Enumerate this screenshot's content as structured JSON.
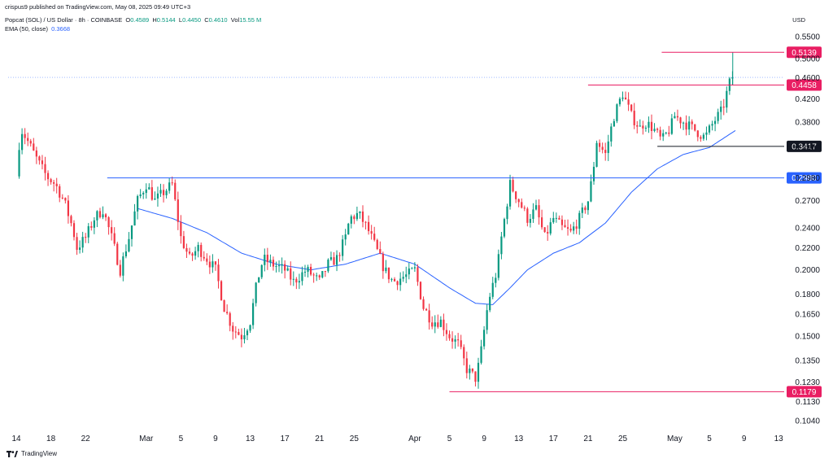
{
  "header": {
    "published": "crispus9 published on TradingView.com, May 08, 2025 09:49 UTC+3",
    "symbol": "Popcat (SOL) / US Dollar · 8h · COINBASE",
    "ohlc": {
      "O": "0.4589",
      "H": "0.5144",
      "L": "0.4450",
      "C": "0.4610",
      "Vol": "15.55 M"
    },
    "ema_label": "EMA (50, close)",
    "ema_value": "0.3668",
    "currency": "USD"
  },
  "brand": {
    "name": "TradingView"
  },
  "colors": {
    "up": "#089981",
    "down": "#f23645",
    "ema": "#2962ff",
    "level_red": "#e91e63",
    "level_blue": "#2962ff",
    "level_black": "#131722"
  },
  "chart_data": {
    "type": "candlestick",
    "y_scale": "log",
    "ylim": [
      0.1,
      0.58
    ],
    "y_ticks": [
      "0.5500",
      "0.5000",
      "0.4600",
      "0.4200",
      "0.3800",
      "0.3400",
      "0.2980",
      "0.2700",
      "0.2400",
      "0.2200",
      "0.2000",
      "0.1800",
      "0.1650",
      "0.1500",
      "0.1350",
      "0.1230",
      "0.1130",
      "0.1040"
    ],
    "x_ticks": [
      {
        "label": "14",
        "day": 0
      },
      {
        "label": "18",
        "day": 4
      },
      {
        "label": "22",
        "day": 8
      },
      {
        "label": "Mar",
        "day": 15
      },
      {
        "label": "5",
        "day": 19
      },
      {
        "label": "9",
        "day": 23
      },
      {
        "label": "13",
        "day": 27
      },
      {
        "label": "17",
        "day": 31
      },
      {
        "label": "21",
        "day": 35
      },
      {
        "label": "25",
        "day": 39
      },
      {
        "label": "Apr",
        "day": 46
      },
      {
        "label": "5",
        "day": 50
      },
      {
        "label": "9",
        "day": 54
      },
      {
        "label": "13",
        "day": 58
      },
      {
        "label": "17",
        "day": 62
      },
      {
        "label": "21",
        "day": 66
      },
      {
        "label": "25",
        "day": 70
      },
      {
        "label": "May",
        "day": 76
      },
      {
        "label": "5",
        "day": 80
      },
      {
        "label": "9",
        "day": 84
      },
      {
        "label": "13",
        "day": 88
      }
    ],
    "levels": [
      {
        "label": "0.5139",
        "value": 0.5139,
        "color": "#e91e63",
        "from_day": 74.5,
        "style": "tag"
      },
      {
        "label": "0.4458",
        "value": 0.4458,
        "color": "#e91e63",
        "from_day": 66,
        "style": "tag"
      },
      {
        "label": "0.3417",
        "value": 0.3417,
        "color": "#131722",
        "from_day": 74,
        "style": "tag-dark"
      },
      {
        "label": "0.2980",
        "value": 0.298,
        "color": "#2962ff",
        "from_day": 10.5,
        "style": "tag"
      },
      {
        "label": "0.1179",
        "value": 0.1179,
        "color": "#e91e63",
        "from_day": 50,
        "style": "tag"
      }
    ],
    "last_price": {
      "label": "0.4610",
      "value": 0.461
    },
    "anchors": [
      [
        0,
        0.3
      ],
      [
        0.5,
        0.37
      ],
      [
        1.3,
        0.35
      ],
      [
        2.5,
        0.32
      ],
      [
        3.5,
        0.3
      ],
      [
        4.5,
        0.29
      ],
      [
        5.5,
        0.27
      ],
      [
        6.5,
        0.24
      ],
      [
        7,
        0.22
      ],
      [
        8,
        0.23
      ],
      [
        9,
        0.25
      ],
      [
        10,
        0.26
      ],
      [
        11,
        0.23
      ],
      [
        12,
        0.2
      ],
      [
        13,
        0.23
      ],
      [
        14,
        0.27
      ],
      [
        15,
        0.29
      ],
      [
        16,
        0.27
      ],
      [
        17,
        0.28
      ],
      [
        18,
        0.29
      ],
      [
        19,
        0.23
      ],
      [
        20,
        0.21
      ],
      [
        21,
        0.22
      ],
      [
        22,
        0.21
      ],
      [
        23,
        0.2
      ],
      [
        24,
        0.17
      ],
      [
        25,
        0.155
      ],
      [
        26,
        0.15
      ],
      [
        27,
        0.16
      ],
      [
        27.8,
        0.19
      ],
      [
        28.5,
        0.21
      ],
      [
        29.5,
        0.205
      ],
      [
        31,
        0.2
      ],
      [
        32,
        0.19
      ],
      [
        33.5,
        0.2
      ],
      [
        35,
        0.19
      ],
      [
        36,
        0.205
      ],
      [
        37,
        0.21
      ],
      [
        38,
        0.23
      ],
      [
        38.5,
        0.25
      ],
      [
        39.5,
        0.255
      ],
      [
        40.5,
        0.24
      ],
      [
        41.5,
        0.22
      ],
      [
        42.5,
        0.2
      ],
      [
        43.5,
        0.19
      ],
      [
        45,
        0.195
      ],
      [
        46,
        0.2
      ],
      [
        47,
        0.17
      ],
      [
        48,
        0.16
      ],
      [
        49,
        0.16
      ],
      [
        50,
        0.15
      ],
      [
        51,
        0.145
      ],
      [
        52,
        0.13
      ],
      [
        53,
        0.125
      ],
      [
        53.5,
        0.135
      ],
      [
        54.5,
        0.175
      ],
      [
        55.5,
        0.2
      ],
      [
        56,
        0.23
      ],
      [
        57,
        0.29
      ],
      [
        58,
        0.27
      ],
      [
        59,
        0.25
      ],
      [
        60,
        0.26
      ],
      [
        61,
        0.23
      ],
      [
        62,
        0.25
      ],
      [
        63,
        0.24
      ],
      [
        64,
        0.235
      ],
      [
        65,
        0.25
      ],
      [
        66,
        0.27
      ],
      [
        66.5,
        0.3
      ],
      [
        67,
        0.35
      ],
      [
        68,
        0.33
      ],
      [
        68.5,
        0.36
      ],
      [
        69,
        0.39
      ],
      [
        69.5,
        0.41
      ],
      [
        70,
        0.43
      ],
      [
        71,
        0.39
      ],
      [
        72,
        0.37
      ],
      [
        72.5,
        0.38
      ],
      [
        73.5,
        0.37
      ],
      [
        74.5,
        0.35
      ],
      [
        75.5,
        0.37
      ],
      [
        76,
        0.39
      ],
      [
        77,
        0.38
      ],
      [
        78,
        0.37
      ],
      [
        79,
        0.36
      ],
      [
        79.5,
        0.355
      ],
      [
        80.5,
        0.38
      ],
      [
        81.5,
        0.4
      ],
      [
        82,
        0.43
      ],
      [
        82.5,
        0.46
      ],
      [
        82.7,
        0.461
      ]
    ],
    "ema_start_day": 14,
    "ema_anchors": [
      [
        14,
        0.261
      ],
      [
        18,
        0.25
      ],
      [
        22,
        0.235
      ],
      [
        26,
        0.215
      ],
      [
        30,
        0.205
      ],
      [
        34,
        0.2
      ],
      [
        38,
        0.205
      ],
      [
        42,
        0.215
      ],
      [
        46,
        0.205
      ],
      [
        50,
        0.185
      ],
      [
        53,
        0.173
      ],
      [
        55,
        0.172
      ],
      [
        57,
        0.185
      ],
      [
        59,
        0.2
      ],
      [
        62,
        0.215
      ],
      [
        65,
        0.225
      ],
      [
        68,
        0.245
      ],
      [
        71,
        0.28
      ],
      [
        74,
        0.31
      ],
      [
        77,
        0.33
      ],
      [
        80,
        0.34
      ],
      [
        83,
        0.366
      ]
    ]
  }
}
